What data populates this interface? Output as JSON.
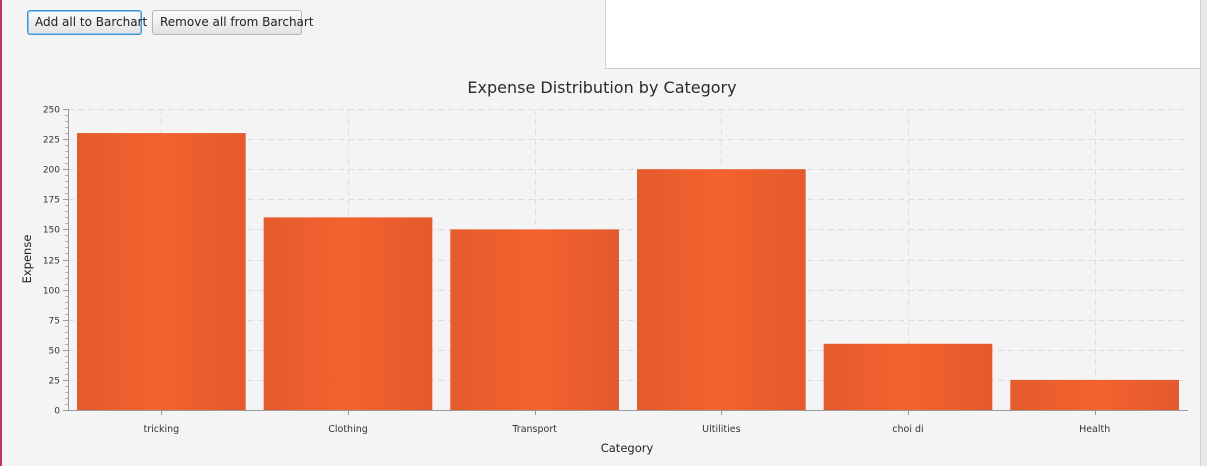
{
  "toolbar": {
    "add_all_label": "Add all to Barchart",
    "remove_all_label": "Remove all from Barchart"
  },
  "colors": {
    "bar": "#f0612f",
    "bar_dark": "#e25a2b"
  },
  "chart_data": {
    "type": "bar",
    "title": "Expense Distribution by Category",
    "xlabel": "Category",
    "ylabel": "Expense",
    "ylim": [
      0,
      250
    ],
    "ytick_step": 25,
    "grid": true,
    "categories": [
      "tricking",
      "Clothing",
      "Transport",
      "Ultilities",
      "choi di",
      "Health"
    ],
    "values": [
      230,
      160,
      150,
      200,
      55,
      25
    ]
  }
}
